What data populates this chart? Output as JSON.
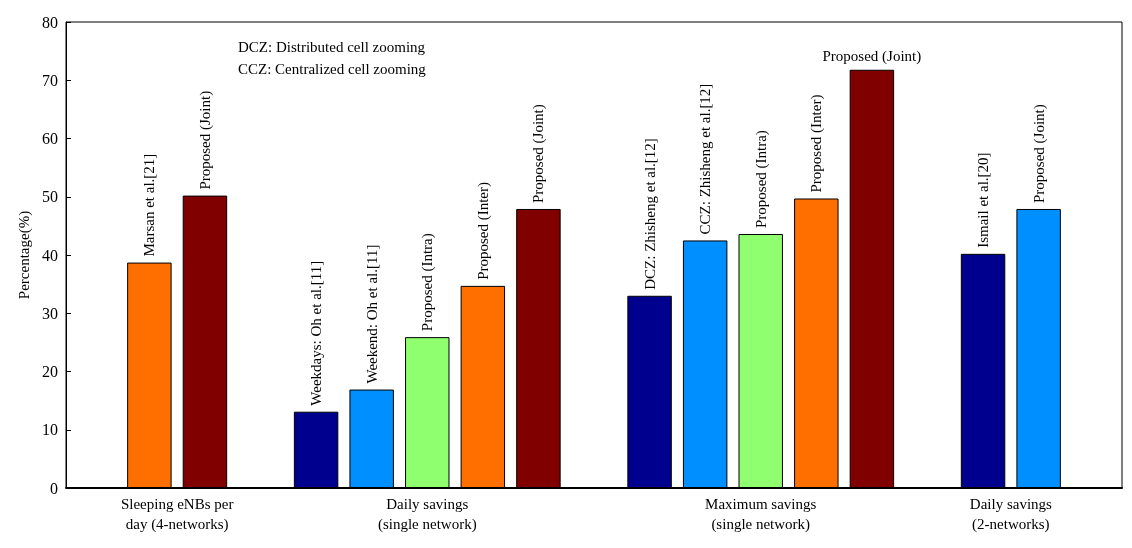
{
  "chart_data": {
    "type": "bar",
    "ylabel": "Percentage(%)",
    "categories": [
      null,
      "Marsan et al.[21]",
      "Proposed (Joint)",
      null,
      "Weekdays: Oh et al.[11]",
      "Weekend: Oh et al.[11]",
      "Proposed (Intra)",
      "Proposed (Inter)",
      "Proposed (Joint)",
      null,
      "DCZ: Zhisheng et al.[12]",
      "CCZ: Zhisheng et al.[12]",
      "Proposed (Intra)",
      "Proposed (Inter)",
      "Proposed (Joint)",
      null,
      "Ismail et al.[20]",
      "Proposed (Joint)",
      null
    ],
    "values": [
      null,
      38.7,
      50.2,
      null,
      13.1,
      16.9,
      25.9,
      34.7,
      47.9,
      null,
      33.0,
      42.5,
      43.6,
      49.7,
      71.8,
      null,
      40.2,
      47.9,
      null
    ],
    "colors": [
      "#000000",
      "#ff6f00",
      "#800000",
      "#000000",
      "#00008f",
      "#008fff",
      "#8fff6f",
      "#ff6f00",
      "#800000",
      "#000000",
      "#00008f",
      "#008fff",
      "#8fff6f",
      "#ff6f00",
      "#800000",
      "#000000",
      "#00008f",
      "#008fff",
      "#000000"
    ],
    "ylim": [
      0,
      80
    ],
    "yticks": [
      0,
      10,
      20,
      30,
      40,
      50,
      60,
      70,
      80
    ],
    "annotations": [
      "DCZ: Distributed cell zooming",
      "CCZ: Centralized cell zooming",
      "Sleeping eNBs per\nday (4-networks)",
      "Daily savings\n(single network)",
      "Maximum savings\n(single network)",
      "Daily savings\n(2-networks)"
    ]
  }
}
